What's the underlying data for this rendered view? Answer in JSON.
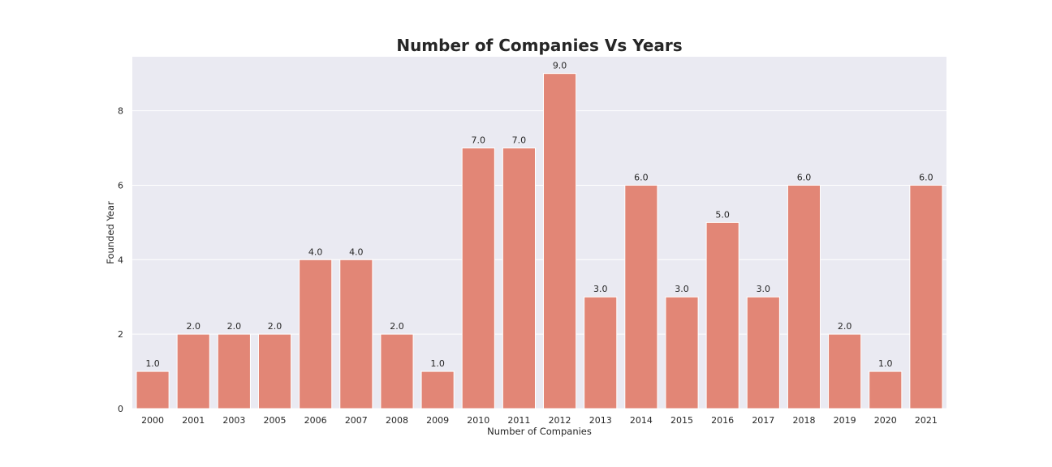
{
  "chart_data": {
    "type": "bar",
    "title": "Number of Companies Vs Years",
    "xlabel": "Number of Companies",
    "ylabel": "Founded Year",
    "categories": [
      "2000",
      "2001",
      "2003",
      "2005",
      "2006",
      "2007",
      "2008",
      "2009",
      "2010",
      "2011",
      "2012",
      "2013",
      "2014",
      "2015",
      "2016",
      "2017",
      "2018",
      "2019",
      "2020",
      "2021"
    ],
    "values": [
      1,
      2,
      2,
      2,
      4,
      4,
      2,
      1,
      7,
      7,
      9,
      3,
      6,
      3,
      5,
      3,
      6,
      2,
      1,
      6
    ],
    "value_labels": [
      "1.0",
      "2.0",
      "2.0",
      "2.0",
      "4.0",
      "4.0",
      "2.0",
      "1.0",
      "7.0",
      "7.0",
      "9.0",
      "3.0",
      "6.0",
      "3.0",
      "5.0",
      "3.0",
      "6.0",
      "2.0",
      "1.0",
      "6.0"
    ],
    "yticks": [
      0,
      2,
      4,
      6,
      8
    ],
    "ylim": [
      0,
      9.45
    ],
    "grid": true,
    "bar_color": "#e28676",
    "background_color": "#eaeaf2"
  }
}
